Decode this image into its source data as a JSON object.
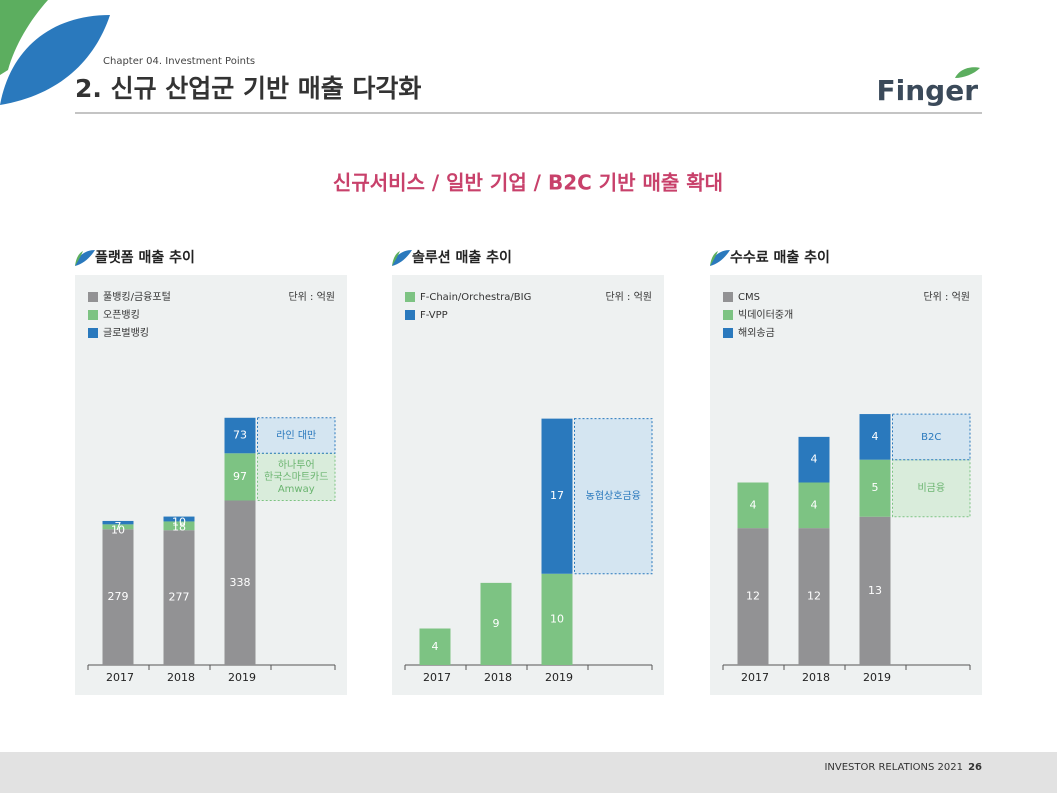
{
  "header": {
    "chapter": "Chapter 04. Investment Points",
    "title": "2. 신규 산업군 기반 매출 다각화",
    "logo": "Finger",
    "subtitle": "신규서비스 / 일반 기업 / B2C 기반 매출 확대"
  },
  "chart_data": [
    {
      "type": "bar",
      "stacked": true,
      "title": "플랫폼 매출 추이",
      "unit": "단위 : 억원",
      "categories": [
        "2017",
        "2018",
        "2019"
      ],
      "ylim": [
        0,
        750
      ],
      "series": [
        {
          "name": "풀뱅킹/금융포털",
          "color": "#929294",
          "values": [
            279,
            277,
            338
          ]
        },
        {
          "name": "오픈뱅킹",
          "color": "#7dc383",
          "values": [
            10,
            18,
            97
          ],
          "annotation": [
            "하나투어",
            "한국스마트카드",
            "Amway"
          ]
        },
        {
          "name": "글로벌뱅킹",
          "color": "#2a79bd",
          "values": [
            7,
            10,
            73
          ],
          "annotation": [
            "라인 대만"
          ]
        }
      ]
    },
    {
      "type": "bar",
      "stacked": true,
      "title": "솔루션 매출 추이",
      "unit": "단위 : 억원",
      "categories": [
        "2017",
        "2018",
        "2019"
      ],
      "ylim": [
        0,
        40
      ],
      "series": [
        {
          "name": "F-Chain/Orchestra/BIG",
          "color": "#7dc383",
          "values": [
            4,
            9,
            10
          ]
        },
        {
          "name": "F-VPP",
          "color": "#2a79bd",
          "values": [
            null,
            null,
            17
          ],
          "annotation": [
            "농협상호금융"
          ]
        }
      ]
    },
    {
      "type": "bar",
      "stacked": true,
      "title": "수수료 매출 추이",
      "unit": "단위 : 억원",
      "categories": [
        "2017",
        "2018",
        "2019"
      ],
      "ylim": [
        0,
        32
      ],
      "series": [
        {
          "name": "CMS",
          "color": "#929294",
          "values": [
            12,
            12,
            13
          ]
        },
        {
          "name": "빅데이터중개",
          "color": "#7dc383",
          "values": [
            4,
            4,
            5
          ],
          "annotation": [
            "비금융"
          ]
        },
        {
          "name": "해외송금",
          "color": "#2a79bd",
          "values": [
            null,
            4,
            4
          ],
          "annotation": [
            "B2C"
          ]
        }
      ]
    }
  ],
  "footer": {
    "text": "INVESTOR RELATIONS 2021",
    "page": "26"
  }
}
